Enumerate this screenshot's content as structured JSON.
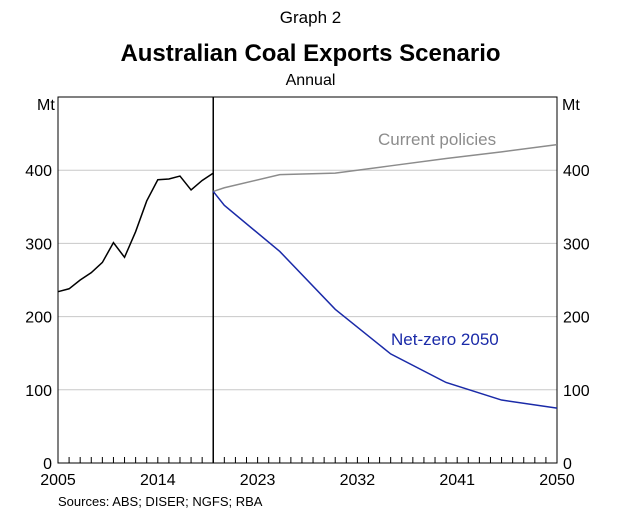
{
  "header": {
    "graph_label": "Graph 2",
    "title": "Australian Coal Exports Scenario",
    "subtitle": "Annual"
  },
  "footer": {
    "source": "Sources: ABS; DISER; NGFS; RBA"
  },
  "colors": {
    "historical": "#000000",
    "current_policies": "#8c8c8c",
    "net_zero": "#1a2aa8",
    "grid": "#c8c8c8"
  },
  "chart_data": {
    "type": "line",
    "ylabel_left": "Mt",
    "ylabel_right": "Mt",
    "xlim": [
      2005,
      2050
    ],
    "ylim": [
      0,
      500
    ],
    "x_ticks": [
      2005,
      2014,
      2023,
      2032,
      2041,
      2050
    ],
    "y_ticks": [
      0,
      100,
      200,
      300,
      400
    ],
    "grid": "horizontal",
    "vertical_marker_x": 2019,
    "series": [
      {
        "key": "historical",
        "name": "",
        "x": [
          2005,
          2006,
          2007,
          2008,
          2009,
          2010,
          2011,
          2012,
          2013,
          2014,
          2015,
          2016,
          2017,
          2018,
          2019
        ],
        "y": [
          234,
          238,
          250,
          260,
          274,
          301,
          281,
          316,
          358,
          387,
          388,
          392,
          373,
          386,
          396
        ]
      },
      {
        "key": "current_policies",
        "name": "Current policies",
        "x": [
          2019,
          2020,
          2025,
          2030,
          2035,
          2040,
          2045,
          2050
        ],
        "y": [
          371,
          376,
          394,
          396,
          406,
          416,
          425,
          435
        ]
      },
      {
        "key": "net_zero",
        "name": "Net-zero 2050",
        "x": [
          2019,
          2020,
          2025,
          2030,
          2035,
          2040,
          2045,
          2050
        ],
        "y": [
          371,
          352,
          289,
          210,
          149,
          110,
          86,
          75
        ]
      }
    ]
  }
}
